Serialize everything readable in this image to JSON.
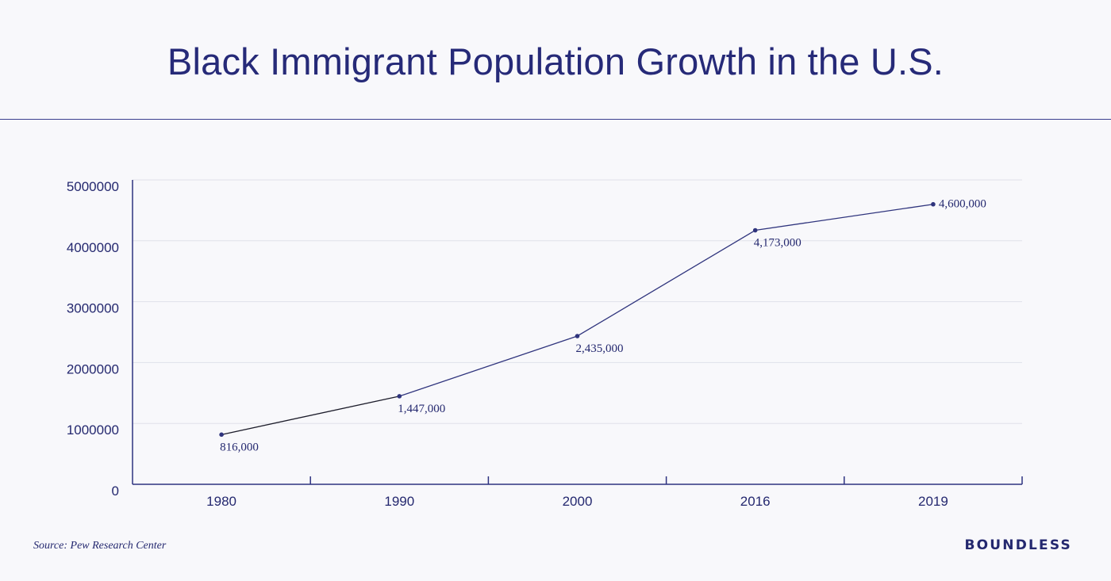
{
  "page": {
    "title": "Black Immigrant Population Growth in the U.S.",
    "source": "Source: Pew Research Center",
    "brand": "BOUNDLESS"
  },
  "colors": {
    "background": "#f8f8fb",
    "primary": "#24286f",
    "line": "#2f347d",
    "grid": "#dfe1ea",
    "axis": "#2d3280"
  },
  "chart_data": {
    "type": "line",
    "title": "Black Immigrant Population Growth in the U.S.",
    "xlabel": "",
    "ylabel": "",
    "categories": [
      "1980",
      "1990",
      "2000",
      "2016",
      "2019"
    ],
    "values": [
      816000,
      1447000,
      2435000,
      4173000,
      4600000
    ],
    "data_labels": [
      "816,000",
      "1,447,000",
      "2,435,000",
      "4,173,000",
      "4,600,000"
    ],
    "y_ticks": [
      0,
      1000000,
      2000000,
      3000000,
      4000000,
      5000000
    ],
    "y_tick_labels": [
      "0",
      "1000000",
      "2000000",
      "3000000",
      "4000000",
      "5000000"
    ],
    "ylim": [
      0,
      5000000
    ],
    "grid": true,
    "legend": "none"
  }
}
